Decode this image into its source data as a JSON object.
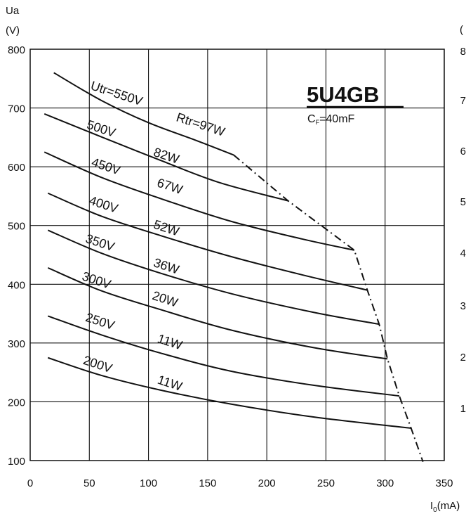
{
  "chart_data": {
    "type": "line",
    "title": "5U4GB",
    "subtitle_main": "C",
    "subtitle_sub": "F",
    "subtitle_rest": "=40mF",
    "ylabel_line1": "Ua",
    "ylabel_line2": "(V)",
    "xlabel_main": "I",
    "xlabel_sub": "0",
    "xlabel_rest": "(mA)",
    "right_axis_partial_ticks": [
      "(",
      "8",
      "7",
      "6",
      "5",
      "4",
      "3",
      "2",
      "1"
    ],
    "xlim": [
      0,
      350
    ],
    "ylim": [
      100,
      800
    ],
    "x_ticks": [
      0,
      50,
      100,
      150,
      200,
      250,
      300,
      350
    ],
    "y_ticks": [
      100,
      200,
      300,
      400,
      500,
      600,
      700,
      800
    ],
    "grid": true,
    "series": [
      {
        "name": "Utr=550V Rtr=97W",
        "x": [
          20,
          60,
          100,
          140,
          172
        ],
        "y": [
          760,
          713,
          675,
          645,
          620
        ],
        "labels": [
          {
            "text": "Utr=550V",
            "x": 72,
            "y": 718
          },
          {
            "text": "Rtr=97W",
            "x": 143,
            "y": 665
          }
        ]
      },
      {
        "name": "500V 82W",
        "x": [
          12,
          60,
          110,
          160,
          218
        ],
        "y": [
          690,
          651,
          611,
          573,
          542
        ],
        "labels": [
          {
            "text": "500V",
            "x": 59,
            "y": 658
          },
          {
            "text": "82W",
            "x": 114,
            "y": 612
          }
        ]
      },
      {
        "name": "450V 67W",
        "x": [
          12,
          60,
          110,
          170,
          230,
          274
        ],
        "y": [
          625,
          582,
          546,
          507,
          477,
          458
        ],
        "labels": [
          {
            "text": "450V",
            "x": 63,
            "y": 594
          },
          {
            "text": "67W",
            "x": 117,
            "y": 560
          }
        ]
      },
      {
        "name": "400V 52W",
        "x": [
          15,
          60,
          110,
          170,
          230,
          285
        ],
        "y": [
          555,
          516,
          483,
          447,
          416,
          390
        ],
        "labels": [
          {
            "text": "400V",
            "x": 61,
            "y": 529
          },
          {
            "text": "52W",
            "x": 114,
            "y": 489
          }
        ]
      },
      {
        "name": "350V 36W",
        "x": [
          15,
          60,
          110,
          170,
          240,
          295
        ],
        "y": [
          492,
          453,
          419,
          384,
          352,
          332
        ],
        "labels": [
          {
            "text": "350V",
            "x": 58,
            "y": 464
          },
          {
            "text": "36W",
            "x": 114,
            "y": 424
          }
        ]
      },
      {
        "name": "300V 20W",
        "x": [
          15,
          60,
          110,
          170,
          240,
          302
        ],
        "y": [
          428,
          389,
          357,
          322,
          292,
          273
        ],
        "labels": [
          {
            "text": "300V",
            "x": 55,
            "y": 400
          },
          {
            "text": "20W",
            "x": 113,
            "y": 368
          }
        ]
      },
      {
        "name": "250V 11W",
        "x": [
          15,
          60,
          110,
          170,
          240,
          312
        ],
        "y": [
          346,
          314,
          283,
          252,
          228,
          210
        ],
        "labels": [
          {
            "text": "250V",
            "x": 58,
            "y": 330
          },
          {
            "text": "11W",
            "x": 117,
            "y": 295
          }
        ]
      },
      {
        "name": "200V 11W",
        "x": [
          15,
          60,
          110,
          170,
          240,
          322
        ],
        "y": [
          275,
          245,
          220,
          196,
          174,
          155
        ],
        "labels": [
          {
            "text": "200V",
            "x": 56,
            "y": 257
          },
          {
            "text": "11W",
            "x": 117,
            "y": 225
          }
        ]
      }
    ],
    "limit_line": {
      "style": "dash-dot",
      "x": [
        172,
        218,
        274,
        285,
        295,
        302,
        312,
        322,
        332
      ],
      "y": [
        620,
        542,
        458,
        390,
        332,
        273,
        210,
        155,
        98
      ]
    }
  }
}
